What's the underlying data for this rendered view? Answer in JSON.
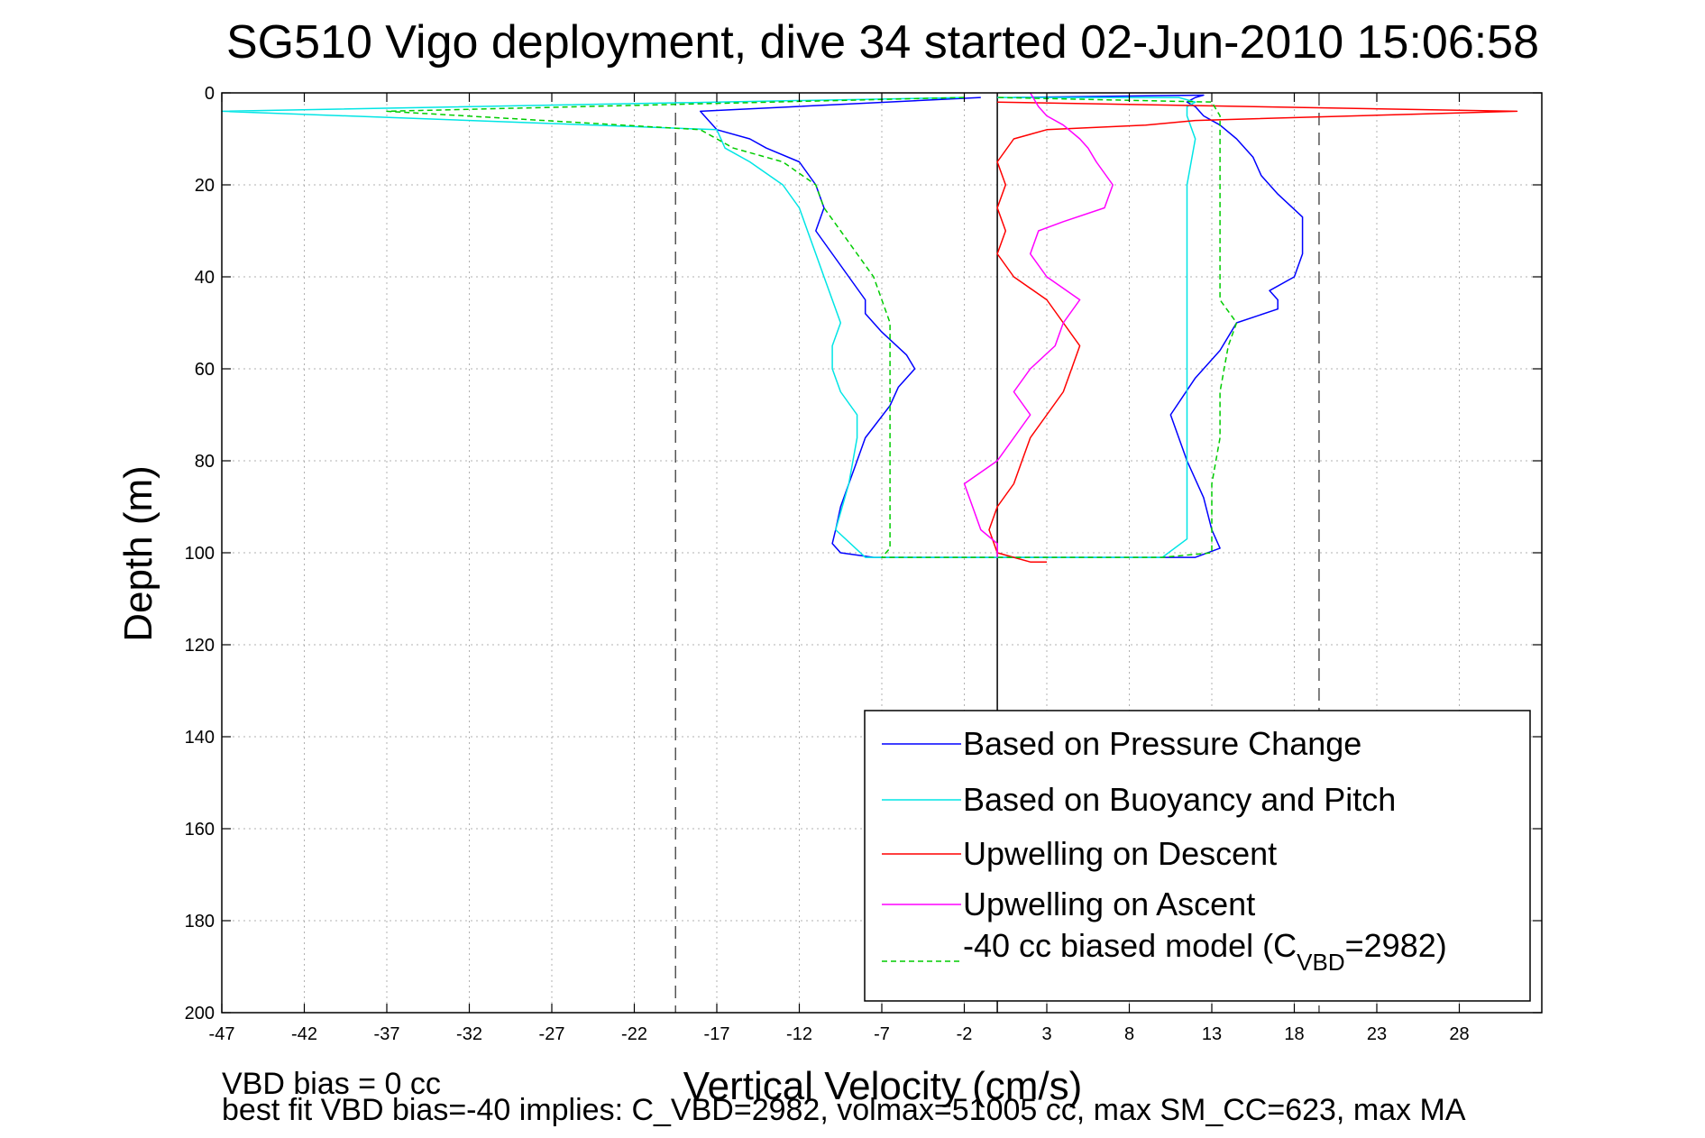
{
  "chart_data": {
    "type": "line",
    "title": "SG510 Vigo deployment, dive 34 started 02-Jun-2010 15:06:58",
    "xlabel": "Vertical Velocity (cm/s)",
    "ylabel": "Depth (m)",
    "xlim": [
      -47,
      33
    ],
    "ylim": [
      0,
      200
    ],
    "y_reversed": true,
    "grid": true,
    "x_ticks": [
      -47,
      -42,
      -37,
      -32,
      -27,
      -22,
      -17,
      -12,
      -7,
      -2,
      3,
      8,
      13,
      18,
      23,
      28
    ],
    "y_ticks": [
      0,
      20,
      40,
      60,
      80,
      100,
      120,
      140,
      160,
      180,
      200
    ],
    "reference_lines": [
      {
        "x": 0,
        "style": "solid"
      },
      {
        "x": -19.5,
        "style": "dashed"
      },
      {
        "x": 19.5,
        "style": "dashed"
      }
    ],
    "legend_position": "bottom-right",
    "series": [
      {
        "name": "Based on Pressure Change",
        "color": "#0000ff",
        "style": "solid",
        "x": [
          -1,
          -18,
          -17,
          -15,
          -14,
          -12,
          -11,
          -10.5,
          -11,
          -10,
          -9,
          -8,
          -8,
          -7,
          -5.5,
          -5,
          -6,
          -6.5,
          -8,
          -8.5,
          -9,
          -9.5,
          -9.8,
          -10,
          -9.5,
          -7.5,
          12,
          13.5,
          13,
          12.5,
          11.5,
          10.5,
          12,
          13.5,
          14.5,
          17,
          17,
          16.5,
          18,
          18.5,
          18.5,
          17,
          16,
          15.5,
          14.5,
          13.5,
          12.5,
          12,
          11.5,
          12,
          12.5,
          1
        ],
        "y": [
          1,
          4,
          8,
          10,
          12,
          15,
          20,
          25,
          30,
          35,
          40,
          45,
          48,
          52,
          57,
          60,
          64,
          68,
          75,
          80,
          85,
          90,
          95,
          98,
          100,
          101,
          101,
          99,
          95,
          88,
          80,
          70,
          62,
          56,
          50,
          47,
          45,
          43,
          40,
          35,
          27,
          22,
          18,
          14,
          10,
          7,
          5,
          3,
          2,
          1,
          0.5,
          1
        ]
      },
      {
        "name": "Based on Buoyancy and Pitch",
        "color": "#00e5e5",
        "style": "solid",
        "x": [
          -2,
          -47,
          -17,
          -16.5,
          -15,
          -13,
          -12,
          -11.5,
          -11,
          -10.5,
          -10,
          -9.5,
          -10,
          -10,
          -9.5,
          -8.5,
          -8.5,
          -9,
          -9.8,
          -8,
          10,
          11.5,
          11.5,
          11.5,
          11.5,
          11.5,
          11.5,
          11.5,
          11.5,
          11.5,
          12,
          11.5,
          11.5,
          12,
          11,
          0
        ],
        "y": [
          1,
          4,
          8,
          12,
          15,
          20,
          25,
          30,
          35,
          40,
          45,
          50,
          55,
          60,
          65,
          70,
          75,
          85,
          95,
          101,
          101,
          97,
          90,
          80,
          70,
          60,
          50,
          40,
          30,
          20,
          10,
          5,
          3,
          2,
          1,
          1
        ]
      },
      {
        "name": "Upwelling on Descent",
        "color": "#ff0000",
        "style": "solid",
        "x": [
          0,
          31.5,
          12,
          9,
          3,
          1,
          0,
          0.5,
          0,
          0.5,
          0,
          1,
          3,
          4,
          5,
          4.5,
          4,
          3,
          2,
          1.5,
          1,
          0,
          -0.5,
          0,
          1,
          2,
          3
        ],
        "y": [
          2,
          4,
          6,
          7,
          8,
          10,
          15,
          20,
          25,
          30,
          35,
          40,
          45,
          50,
          55,
          60,
          65,
          70,
          75,
          80,
          85,
          90,
          95,
          100,
          101,
          102,
          102
        ]
      },
      {
        "name": "Upwelling on Ascent",
        "color": "#ff00ff",
        "style": "solid",
        "x": [
          0,
          0,
          -1,
          -1.5,
          -2,
          0,
          1,
          2,
          1,
          2,
          3.5,
          4,
          5,
          3,
          2,
          2.5,
          4,
          6.5,
          7,
          6,
          5.5,
          5,
          4,
          3,
          2.5,
          2
        ],
        "y": [
          101,
          98,
          95,
          90,
          85,
          80,
          75,
          70,
          65,
          60,
          55,
          50,
          45,
          40,
          35,
          30,
          28,
          25,
          20,
          15,
          12,
          10,
          7,
          5,
          3,
          0
        ]
      },
      {
        "name": "-40 cc biased model (C_VBD=2982)",
        "color": "#00cc00",
        "style": "dashed",
        "x": [
          -2,
          -37,
          -18,
          -16,
          -13,
          -11,
          -10.5,
          -9.5,
          -8.5,
          -7.5,
          -7,
          -6.5,
          -6.5,
          -6.5,
          -6.5,
          -6.5,
          -6.5,
          -6.5,
          -6.5,
          -7,
          -5,
          10,
          13,
          13,
          13,
          13.5,
          13.5,
          14,
          14.5,
          13.5,
          13.5,
          13.5,
          13.5,
          13.5,
          13.5,
          13,
          0
        ],
        "y": [
          1,
          4,
          8,
          12,
          15,
          20,
          25,
          30,
          35,
          40,
          45,
          50,
          55,
          60,
          70,
          80,
          90,
          95,
          99,
          101,
          101,
          101,
          100,
          95,
          85,
          75,
          65,
          55,
          50,
          45,
          40,
          30,
          20,
          10,
          5,
          2,
          1
        ]
      }
    ]
  },
  "legend": {
    "entries": [
      "Based on Pressure Change",
      "Based on Buoyancy and Pitch",
      "Upwelling on Descent",
      "Upwelling on Ascent"
    ],
    "model_entry_prefix": "-40 cc biased model (C",
    "model_entry_sub": "VBD",
    "model_entry_suffix": "=2982)"
  },
  "footer": {
    "line1": "VBD bias = 0 cc",
    "line2": "best fit VBD bias=-40 implies: C_VBD=2982, volmax=51005 cc, max SM_CC=623, max MA"
  }
}
